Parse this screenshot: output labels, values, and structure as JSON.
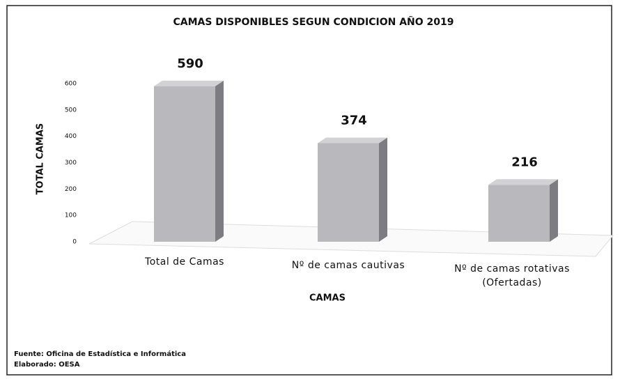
{
  "chart_data": {
    "type": "bar3d",
    "title": "CAMAS DISPONIBLES SEGUN CONDICION AÑO 2019",
    "categories": [
      "Total de Camas",
      "Nº de camas cautivas",
      "Nº de camas rotativas (Ofertadas)"
    ],
    "values": [
      590,
      374,
      216
    ],
    "color": "#b9b9bd",
    "ylim": [
      0,
      600
    ],
    "yticks": [
      0,
      100,
      200,
      300,
      400,
      500,
      600
    ],
    "ylabel": "TOTAL CAMAS",
    "xlabel": "CAMAS",
    "grid": false,
    "source": [
      "Fuente: Oficina de Estadística e Informática",
      "Elaborado: OESA"
    ]
  }
}
